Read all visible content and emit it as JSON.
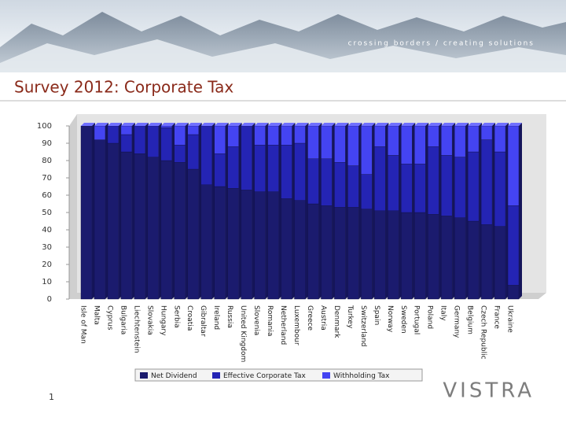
{
  "header": {
    "tagline": "crossing borders / creating solutions",
    "title": "Survey 2012: Corporate Tax"
  },
  "footer": {
    "page": "1",
    "logo": "VISTRA"
  },
  "chart_data": {
    "type": "stacked_bar",
    "categories": [
      "Isle of Man",
      "Malta",
      "Cyprus",
      "Bulgaria",
      "Liechtenstein",
      "Slovakia",
      "Hungary",
      "Serbia",
      "Croatia",
      "Gibraltar",
      "Ireland",
      "Russia",
      "United Kingdom",
      "Slovenia",
      "Romania",
      "Netherland",
      "Luxembour",
      "Greece",
      "Austria",
      "Denmark",
      "Turkey",
      "Switzerland",
      "Spain",
      "Norway",
      "Sweden",
      "Portugal",
      "Poland",
      "Italy",
      "Germany",
      "Belgium",
      "Czech Republic",
      "France",
      "Ukraine"
    ],
    "series": [
      {
        "name": "Net Dividend",
        "color": "#1b1b6e",
        "values": [
          100,
          92,
          90,
          85,
          84,
          82,
          80,
          79,
          75,
          66,
          65,
          64,
          63,
          62,
          62,
          58,
          57,
          55,
          54,
          53,
          53,
          52,
          51,
          51,
          50,
          50,
          49,
          48,
          47,
          45,
          43,
          42,
          8
        ]
      },
      {
        "name": "Effective Corporate Tax",
        "color": "#2424b4",
        "values": [
          0,
          0,
          10,
          10,
          16,
          18,
          19,
          10,
          20,
          34,
          19,
          24,
          37,
          27,
          27,
          31,
          33,
          26,
          27,
          26,
          24,
          20,
          37,
          32,
          28,
          28,
          39,
          35,
          35,
          40,
          49,
          43,
          46
        ]
      },
      {
        "name": "Withholding Tax",
        "color": "#4444f2",
        "values": [
          0,
          8,
          0,
          5,
          0,
          0,
          1,
          11,
          5,
          0,
          16,
          12,
          0,
          11,
          11,
          11,
          10,
          19,
          19,
          21,
          23,
          28,
          12,
          17,
          22,
          22,
          12,
          17,
          18,
          15,
          8,
          15,
          46
        ]
      }
    ],
    "ylim": [
      0,
      100
    ],
    "yticks": [
      0,
      10,
      20,
      30,
      40,
      50,
      60,
      70,
      80,
      90,
      100
    ],
    "grid": false,
    "legend": "bottom"
  }
}
